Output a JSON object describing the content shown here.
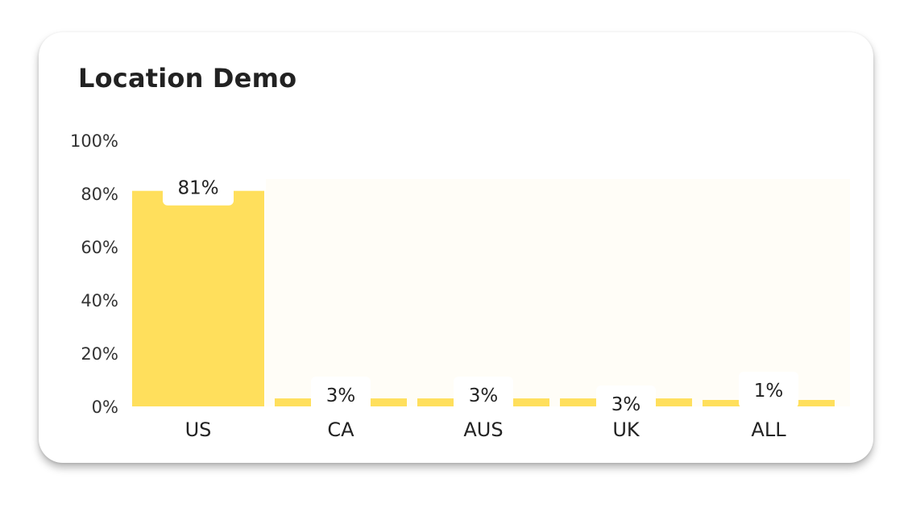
{
  "card": {
    "title": "Location Demo"
  },
  "chart_data": {
    "type": "bar",
    "title": "Location Demo",
    "categories": [
      "US",
      "CA",
      "AUS",
      "UK",
      "ALL"
    ],
    "values": [
      81,
      3,
      3,
      3,
      1
    ],
    "data_labels": [
      "81%",
      "3%",
      "3%",
      "3%",
      "1%"
    ],
    "xlabel": "",
    "ylabel": "",
    "ylim": [
      0,
      100
    ],
    "yticks": [
      0,
      20,
      40,
      60,
      80,
      100
    ],
    "ytick_labels": [
      "0%",
      "20%",
      "40%",
      "60%",
      "80%",
      "100%"
    ],
    "grid": false,
    "legend": "none",
    "colors": {
      "bar": "#FFDF5C",
      "highlight_background": "#FFFDF7",
      "label_box": "#FFFFFF",
      "text": "#222222"
    }
  }
}
